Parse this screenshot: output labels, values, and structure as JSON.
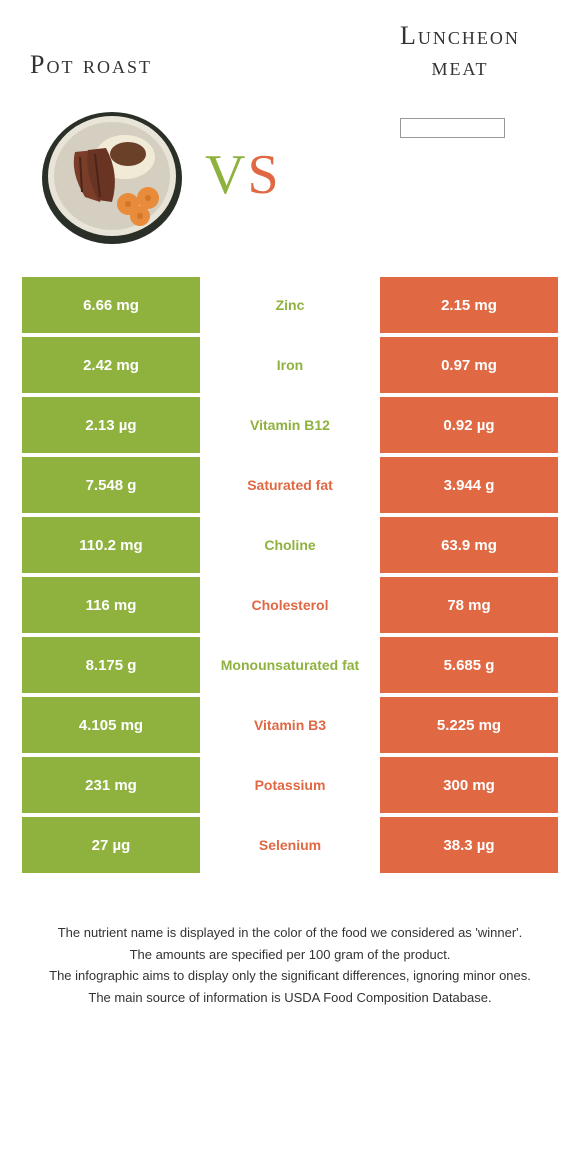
{
  "colors": {
    "green": "#8fb23f",
    "orange": "#e06843",
    "text": "#333333",
    "background": "#ffffff"
  },
  "header": {
    "left_title": "Pot roast",
    "right_title_line1": "Luncheon",
    "right_title_line2": "meat"
  },
  "vs": {
    "v": "V",
    "s": "S"
  },
  "rows": [
    {
      "left": "6.66 mg",
      "label": "Zinc",
      "right": "2.15 mg",
      "winner": "green"
    },
    {
      "left": "2.42 mg",
      "label": "Iron",
      "right": "0.97 mg",
      "winner": "green"
    },
    {
      "left": "2.13 µg",
      "label": "Vitamin B12",
      "right": "0.92 µg",
      "winner": "green"
    },
    {
      "left": "7.548 g",
      "label": "Saturated fat",
      "right": "3.944 g",
      "winner": "orange"
    },
    {
      "left": "110.2 mg",
      "label": "Choline",
      "right": "63.9 mg",
      "winner": "green"
    },
    {
      "left": "116 mg",
      "label": "Cholesterol",
      "right": "78 mg",
      "winner": "orange"
    },
    {
      "left": "8.175 g",
      "label": "Monounsaturated fat",
      "right": "5.685 g",
      "winner": "green"
    },
    {
      "left": "4.105 mg",
      "label": "Vitamin B3",
      "right": "5.225 mg",
      "winner": "orange"
    },
    {
      "left": "231 mg",
      "label": "Potassium",
      "right": "300 mg",
      "winner": "orange"
    },
    {
      "left": "27 µg",
      "label": "Selenium",
      "right": "38.3 µg",
      "winner": "orange"
    }
  ],
  "footer": {
    "line1": "The nutrient name is displayed in the color of the food we considered as 'winner'.",
    "line2": "The amounts are specified per 100 gram of the product.",
    "line3": "The infographic aims to display only the significant differences, ignoring minor ones.",
    "line4": "The main source of information is USDA Food Composition Database."
  }
}
